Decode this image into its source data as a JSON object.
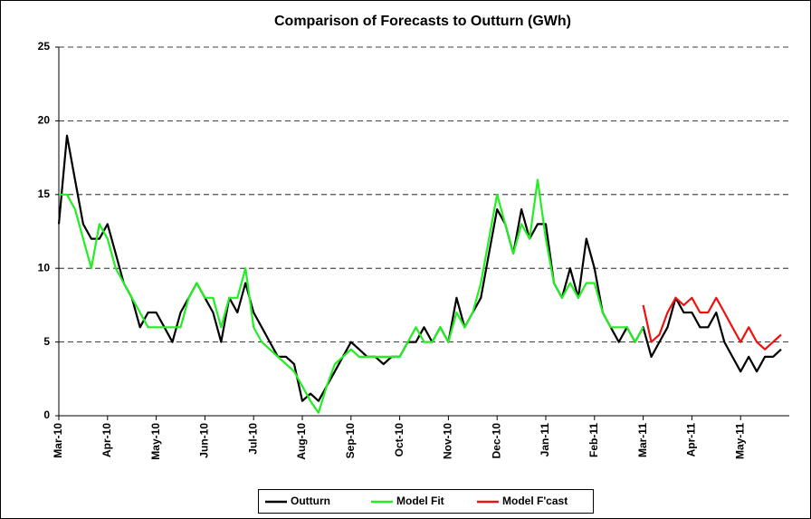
{
  "chart_data": {
    "type": "line",
    "title": "Comparison of Forecasts to Outturn (GWh)",
    "categories": [
      "Mar-10",
      null,
      null,
      null,
      null,
      null,
      "Apr-10",
      null,
      null,
      null,
      null,
      null,
      "May-10",
      null,
      null,
      null,
      null,
      null,
      "Jun-10",
      null,
      null,
      null,
      null,
      null,
      "Jul-10",
      null,
      null,
      null,
      null,
      null,
      "Aug-10",
      null,
      null,
      null,
      null,
      null,
      "Sep-10",
      null,
      null,
      null,
      null,
      null,
      "Oct-10",
      null,
      null,
      null,
      null,
      null,
      "Nov-10",
      null,
      null,
      null,
      null,
      null,
      "Dec-10",
      null,
      null,
      null,
      null,
      null,
      "Jan-11",
      null,
      null,
      null,
      null,
      null,
      "Feb-11",
      null,
      null,
      null,
      null,
      null,
      "Mar-11",
      null,
      null,
      null,
      null,
      null,
      "Apr-11",
      null,
      null,
      null,
      null,
      null,
      "May-11",
      null,
      null,
      null,
      null,
      null
    ],
    "series": [
      {
        "name": "Outturn",
        "color": "#000000",
        "values": [
          13,
          19,
          16,
          13,
          12,
          12,
          13,
          11,
          9,
          8,
          6,
          7,
          7,
          6,
          5,
          7,
          8,
          9,
          8,
          7,
          5,
          8,
          7,
          9,
          7,
          6,
          5,
          4,
          4,
          3.5,
          1,
          1.5,
          1,
          2,
          3,
          4,
          5,
          4.5,
          4,
          4,
          3.5,
          4,
          4,
          5,
          5,
          6,
          5,
          6,
          5,
          8,
          6,
          7,
          8,
          11,
          14,
          13,
          11,
          14,
          12,
          13,
          13,
          9,
          8,
          10,
          8,
          12,
          10,
          7,
          6,
          5,
          6,
          5,
          6,
          4,
          5,
          6,
          8,
          7,
          7,
          6,
          6,
          7,
          5,
          4,
          3,
          4,
          3,
          4,
          4,
          4.5
        ]
      },
      {
        "name": "Model Fit",
        "color": "#22ee22",
        "values": [
          15,
          15,
          14,
          12,
          10,
          13,
          12,
          10,
          9,
          8,
          7,
          6,
          6,
          6,
          6,
          6,
          8,
          9,
          8,
          8,
          6,
          8,
          8,
          10,
          6,
          5,
          4.5,
          4,
          3.5,
          3,
          2,
          1,
          0.2,
          2,
          3.5,
          4,
          4.5,
          4,
          4,
          4,
          4,
          4,
          4,
          5,
          6,
          5,
          5,
          6,
          5,
          7,
          6,
          7,
          9,
          12,
          15,
          13,
          11,
          13,
          12,
          16,
          12,
          9,
          8,
          9,
          8,
          9,
          9,
          7,
          6,
          6,
          6,
          5,
          6,
          null,
          null,
          null,
          null,
          null,
          null,
          null,
          null,
          null,
          null,
          null,
          null,
          null,
          null,
          null,
          null,
          null
        ]
      },
      {
        "name": "Model F'cast",
        "color": "#ee1111",
        "values": [
          null,
          null,
          null,
          null,
          null,
          null,
          null,
          null,
          null,
          null,
          null,
          null,
          null,
          null,
          null,
          null,
          null,
          null,
          null,
          null,
          null,
          null,
          null,
          null,
          null,
          null,
          null,
          null,
          null,
          null,
          null,
          null,
          null,
          null,
          null,
          null,
          null,
          null,
          null,
          null,
          null,
          null,
          null,
          null,
          null,
          null,
          null,
          null,
          null,
          null,
          null,
          null,
          null,
          null,
          null,
          null,
          null,
          null,
          null,
          null,
          null,
          null,
          null,
          null,
          null,
          null,
          null,
          null,
          null,
          null,
          null,
          null,
          7.5,
          5,
          5.5,
          7,
          8,
          7.5,
          8,
          7,
          7,
          8,
          7,
          6,
          5,
          6,
          5,
          4.5,
          5,
          5.5
        ]
      }
    ],
    "ylim": [
      0,
      25
    ],
    "yticks": [
      0,
      5,
      10,
      15,
      20,
      25
    ],
    "grid": true
  }
}
